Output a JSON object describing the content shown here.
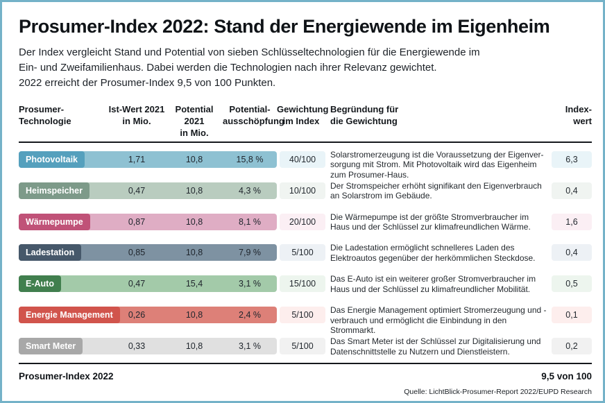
{
  "title": "Prosumer-Index 2022: Stand der Energiewende im Eigenheim",
  "intro": {
    "lines": [
      "Der Index vergleicht Stand und Potential von sieben Schlüsseltechnologien für die Energiewende im",
      "Ein- und Zweifamilienhaus. Dabei werden die Technologien nach ihrer Relevanz gewichtet.",
      "2022 erreicht der Prosumer-Index 9,5 von 100 Punkten."
    ]
  },
  "header": {
    "technology": "Prosumer-\nTechnologie",
    "ist_wert": "Ist-Wert 2021\nin Mio.",
    "potential": "Potential 2021\nin Mio.",
    "ausschoepfung": "Potential-\nausschöpfung",
    "gewichtung": "Gewichtung\nim Index",
    "begruendung": "Begründung für\ndie Gewichtung",
    "indexwert": "Index-\nwert"
  },
  "chart_data": {
    "type": "table",
    "title": "Prosumer-Index 2022: Stand der Energiewende im Eigenheim",
    "columns": [
      "Prosumer-Technologie",
      "Ist-Wert 2021 in Mio.",
      "Potential 2021 in Mio.",
      "Potential-ausschöpfung",
      "Gewichtung im Index",
      "Begründung für die Gewichtung",
      "Index-wert"
    ],
    "rows": [
      {
        "technology": "Photovoltaik",
        "ist_wert": "1,71",
        "potential": "10,8",
        "ausschoepfung": "15,8 %",
        "gewichtung": "40/100",
        "begruendung": "Solarstromerzeugung ist die Voraussetzung der Eigenver- sorgung mit Strom. Mit Photovoltaik wird das Eigenheim zum Prosumer-Haus.",
        "indexwert": "6,3",
        "colors": {
          "badge": "#55a0bd",
          "band": "#8ec1d2",
          "tint": "#e9f4f8"
        }
      },
      {
        "technology": "Heimspeicher",
        "ist_wert": "0,47",
        "potential": "10,8",
        "ausschoepfung": "4,3 %",
        "gewichtung": "10/100",
        "begruendung": "Der Stromspeicher erhöht signifikant den Eigenverbrauch an Solarstrom im Gebäude.",
        "indexwert": "0,4",
        "colors": {
          "badge": "#7d9a89",
          "band": "#b9ccbf",
          "tint": "#f0f4f1"
        }
      },
      {
        "technology": "Wärmepumpe",
        "ist_wert": "0,87",
        "potential": "10,8",
        "ausschoepfung": "8,1 %",
        "gewichtung": "20/100",
        "begruendung": "Die Wärmepumpe ist der größte Stromverbraucher im Haus und der Schlüssel zur klimafreundlichen Wärme.",
        "indexwert": "1,6",
        "colors": {
          "badge": "#c05278",
          "band": "#dfadc4",
          "tint": "#fbeff4"
        }
      },
      {
        "technology": "Ladestation",
        "ist_wert": "0,85",
        "potential": "10,8",
        "ausschoepfung": "7,9 %",
        "gewichtung": "5/100",
        "begruendung": "Die Ladestation ermöglicht schnelleres Laden des Elektroautos gegenüber der herkömmlichen Steckdose.",
        "indexwert": "0,4",
        "colors": {
          "badge": "#46586a",
          "band": "#7e92a2",
          "tint": "#edf1f5"
        }
      },
      {
        "technology": "E-Auto",
        "ist_wert": "0,47",
        "potential": "15,4",
        "ausschoepfung": "3,1 %",
        "gewichtung": "15/100",
        "begruendung": "Das E-Auto ist ein weiterer großer Stromverbraucher im Haus und der Schlüssel zu klimafreundlicher Mobilität.",
        "indexwert": "0,5",
        "colors": {
          "badge": "#417f4e",
          "band": "#a3caa9",
          "tint": "#edf5ee"
        }
      },
      {
        "technology": "Energie Management",
        "ist_wert": "0,26",
        "potential": "10,8",
        "ausschoepfung": "2,4 %",
        "gewichtung": "5/100",
        "begruendung": "Das Energie Management optimiert Stromerzeugung und -verbrauch und ermöglicht die Einbindung in den Strommarkt.",
        "indexwert": "0,1",
        "colors": {
          "badge": "#d1544c",
          "band": "#dd8078",
          "tint": "#fdeeed"
        }
      },
      {
        "technology": "Smart Meter",
        "ist_wert": "0,33",
        "potential": "10,8",
        "ausschoepfung": "3,1 %",
        "gewichtung": "5/100",
        "begruendung": "Das Smart Meter ist der Schlüssel zur Digitalisierung und Datenschnittstelle zu Nutzern und Dienstleistern.",
        "indexwert": "0,2",
        "colors": {
          "badge": "#a8a8a8",
          "band": "#e0e0e0",
          "tint": "#f1f1f1"
        }
      }
    ],
    "total": "9,5 von 100"
  },
  "footer": {
    "label": "Prosumer-Index 2022",
    "value": "9,5 von 100",
    "source": "Quelle: LichtBlick-Prosumer-Report 2022/EUPD Research"
  },
  "colors": {
    "border": "#74b2c8",
    "rule": "#15181c"
  }
}
